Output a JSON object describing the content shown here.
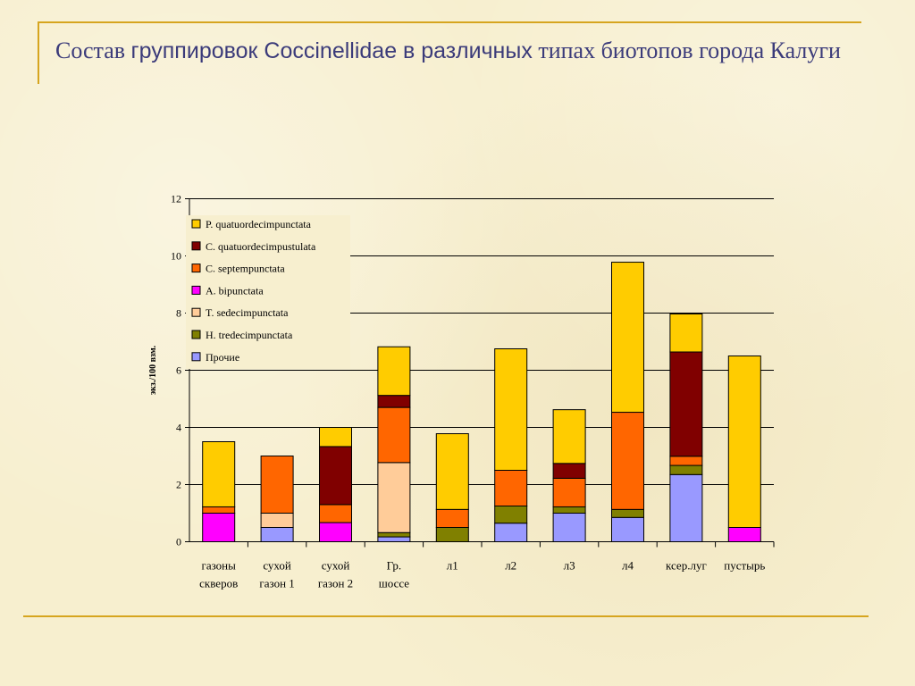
{
  "title": {
    "part1": "Состав ",
    "part2": "группировок Coccinellidae в различных",
    "part3": " типах биотопов города Калуги"
  },
  "colors": {
    "frame": "#d6a51f",
    "title": "#3b3b7a"
  },
  "chart_data": {
    "type": "bar",
    "stacked": true,
    "ylabel": "экз./100 взм.",
    "ylim": [
      0,
      12
    ],
    "yticks": [
      "0",
      "2",
      "4",
      "6",
      "8",
      "10",
      "12"
    ],
    "grid": true,
    "legend_position": "top-left",
    "categories": [
      [
        "газоны",
        "скверов"
      ],
      [
        "сухой",
        "газон 1"
      ],
      [
        "сухой",
        "газон 2"
      ],
      [
        "Гр.",
        "шоссе"
      ],
      [
        "л1"
      ],
      [
        "л2"
      ],
      [
        "л3"
      ],
      [
        "л4"
      ],
      [
        "ксер.луг"
      ],
      [
        "пустырь"
      ]
    ],
    "series": [
      {
        "name": "Прочие",
        "color": "#9999ff",
        "values": [
          0,
          0.5,
          0,
          0.17,
          0,
          0.65,
          1.0,
          0.85,
          2.35,
          0
        ]
      },
      {
        "name": "H. tredecimpunctata",
        "color": "#808000",
        "values": [
          0,
          0,
          0,
          0.15,
          0.5,
          0.6,
          0.22,
          0.28,
          0.32,
          0
        ]
      },
      {
        "name": "T. sedecimpunctata",
        "color": "#ffcc99",
        "values": [
          0,
          0.5,
          0,
          2.45,
          0,
          0,
          0,
          0,
          0,
          0
        ]
      },
      {
        "name": "A. bipunctata",
        "color": "#ff00ff",
        "values": [
          1.0,
          0,
          0.67,
          0,
          0,
          0,
          0,
          0,
          0,
          0.5
        ]
      },
      {
        "name": "C. septempunctata",
        "color": "#ff6600",
        "values": [
          0.22,
          2.0,
          0.63,
          1.93,
          0.63,
          1.25,
          1.0,
          3.4,
          0.32,
          0
        ]
      },
      {
        "name": "C. quatuordecimpustulata",
        "color": "#800000",
        "values": [
          0,
          0,
          2.03,
          0.42,
          0,
          0,
          0.52,
          0,
          3.65,
          0
        ]
      },
      {
        "name": "P. quatuordecimpunctata",
        "color": "#ffcc00",
        "values": [
          2.28,
          0,
          0.67,
          1.7,
          2.65,
          4.25,
          1.88,
          5.25,
          1.33,
          6.0
        ]
      }
    ]
  }
}
